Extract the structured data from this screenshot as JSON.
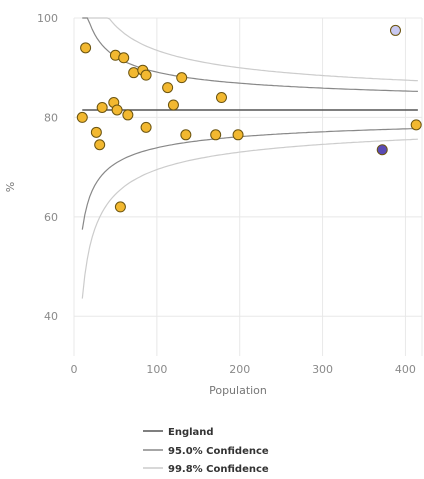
{
  "chart_data": {
    "type": "scatter",
    "title": "",
    "xlabel": "Population",
    "ylabel": "%",
    "xlim": [
      0,
      420
    ],
    "ylim": [
      32,
      100
    ],
    "x_ticks": [
      "0",
      "100",
      "200",
      "300",
      "400"
    ],
    "y_ticks": [
      "100",
      "80",
      "60",
      "40"
    ],
    "grid": true,
    "legend_position": "bottom-center",
    "england_value": 81.5,
    "colors": {
      "similar": "#f2b830",
      "higher": "#c8c8f0",
      "lower": "#5a4bb5",
      "england": "#555555",
      "ci95": "#888888",
      "ci998": "#cccccc"
    },
    "legend": [
      {
        "label": "England",
        "color": "#555555"
      },
      {
        "label": "95.0% Confidence",
        "color": "#888888"
      },
      {
        "label": "99.8% Confidence",
        "color": "#cccccc"
      }
    ],
    "points": [
      {
        "x": 14,
        "y": 94,
        "group": "similar"
      },
      {
        "x": 50,
        "y": 92.5,
        "group": "similar"
      },
      {
        "x": 60,
        "y": 92,
        "group": "similar"
      },
      {
        "x": 72,
        "y": 89,
        "group": "similar"
      },
      {
        "x": 83,
        "y": 89.5,
        "group": "similar"
      },
      {
        "x": 87,
        "y": 88.5,
        "group": "similar"
      },
      {
        "x": 130,
        "y": 88,
        "group": "similar"
      },
      {
        "x": 113,
        "y": 86,
        "group": "similar"
      },
      {
        "x": 120,
        "y": 82.5,
        "group": "similar"
      },
      {
        "x": 178,
        "y": 84,
        "group": "similar"
      },
      {
        "x": 48,
        "y": 83,
        "group": "similar"
      },
      {
        "x": 34,
        "y": 82,
        "group": "similar"
      },
      {
        "x": 52,
        "y": 81.5,
        "group": "similar"
      },
      {
        "x": 65,
        "y": 80.5,
        "group": "similar"
      },
      {
        "x": 10,
        "y": 80,
        "group": "similar"
      },
      {
        "x": 87,
        "y": 78,
        "group": "similar"
      },
      {
        "x": 27,
        "y": 77,
        "group": "similar"
      },
      {
        "x": 135,
        "y": 76.5,
        "group": "similar"
      },
      {
        "x": 171,
        "y": 76.5,
        "group": "similar"
      },
      {
        "x": 198,
        "y": 76.5,
        "group": "similar"
      },
      {
        "x": 31,
        "y": 74.5,
        "group": "similar"
      },
      {
        "x": 413,
        "y": 78.5,
        "group": "similar"
      },
      {
        "x": 56,
        "y": 62,
        "group": "similar"
      },
      {
        "x": 388,
        "y": 97.5,
        "group": "higher"
      },
      {
        "x": 372,
        "y": 73.5,
        "group": "lower"
      }
    ]
  }
}
